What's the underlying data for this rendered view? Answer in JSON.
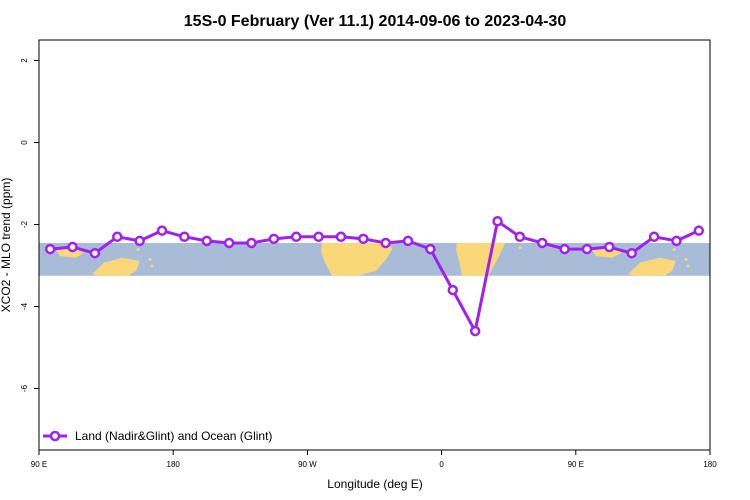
{
  "chart_data": {
    "type": "line",
    "title": "15S-0 February (Ver 11.1)   2014-09-06 to 2023-04-30",
    "xlabel": "Longitude (deg E)",
    "ylabel": "XCO2 - MLO trend (ppm)",
    "xlim": [
      90,
      450
    ],
    "ylim": [
      -7.5,
      2.5
    ],
    "x_ticks": [
      {
        "value": 90,
        "label": "90 E"
      },
      {
        "value": 162,
        "label": "180"
      },
      {
        "value": 234,
        "label": "90 W"
      },
      {
        "value": 306,
        "label": "0"
      },
      {
        "value": 378,
        "label": "90 E"
      },
      {
        "value": 450,
        "label": "180"
      }
    ],
    "y_ticks": [
      -6,
      -4,
      -2,
      0,
      2
    ],
    "background_band": {
      "y_range": [
        -3.25,
        -2.45
      ],
      "ocean_color": "#a8bcd8",
      "land_color": "#fad87a"
    },
    "series": [
      {
        "name": "Land (Nadir&Glint) and Ocean (Glint)",
        "color": "#a020f0",
        "x": [
          96,
          108,
          120,
          132,
          144,
          156,
          168,
          180,
          192,
          204,
          216,
          228,
          240,
          252,
          264,
          276,
          288,
          300,
          312,
          324,
          336,
          348,
          360,
          372,
          384,
          396,
          408,
          420,
          432,
          444
        ],
        "y": [
          -2.6,
          -2.55,
          -2.7,
          -2.3,
          -2.4,
          -2.15,
          -2.3,
          -2.4,
          -2.45,
          -2.45,
          -2.35,
          -2.3,
          -2.3,
          -2.3,
          -2.35,
          -2.45,
          -2.4,
          -2.6,
          -3.6,
          -4.6,
          -1.92,
          -2.3,
          -2.45,
          -2.6,
          -2.6,
          -2.55,
          -2.7,
          -2.3,
          -2.4,
          -2.15
        ]
      }
    ],
    "legend_position": "bottom-left",
    "grid": false
  }
}
